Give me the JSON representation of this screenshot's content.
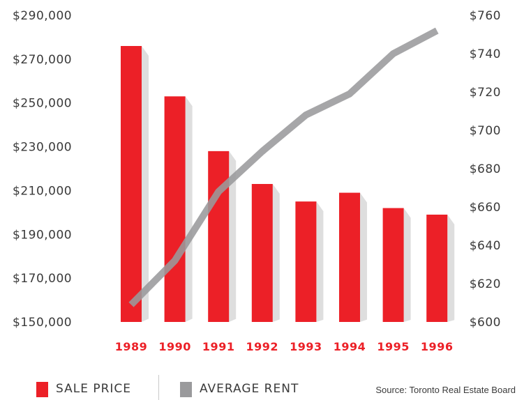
{
  "chart_data": {
    "type": "bar",
    "categories": [
      "1989",
      "1990",
      "1991",
      "1992",
      "1993",
      "1994",
      "1995",
      "1996"
    ],
    "series": [
      {
        "name": "SALE PRICE",
        "type": "bar",
        "axis": "left",
        "color": "#ec2027",
        "values": [
          276000,
          253000,
          228000,
          213000,
          205000,
          209000,
          202000,
          199000
        ]
      },
      {
        "name": "AVERAGE RENT",
        "type": "line",
        "axis": "right",
        "color": "#9a9a9c",
        "values": [
          609,
          632,
          668,
          689,
          708,
          719,
          740,
          752
        ]
      }
    ],
    "y_left": {
      "min": 150000,
      "max": 290000,
      "ticks": [
        "$150,000",
        "$170,000",
        "$190,000",
        "$210,000",
        "$230,000",
        "$250,000",
        "$270,000",
        "$290,000"
      ]
    },
    "y_right": {
      "min": 600,
      "max": 760,
      "ticks": [
        "$600",
        "$620",
        "$640",
        "$660",
        "$680",
        "$700",
        "$720",
        "$740",
        "$760"
      ]
    },
    "grid": false,
    "legend_position": "bottom-left"
  },
  "legend": {
    "bar_label": "SALE PRICE",
    "line_label": "AVERAGE RENT"
  },
  "source": "Source: Toronto Real Estate Board"
}
